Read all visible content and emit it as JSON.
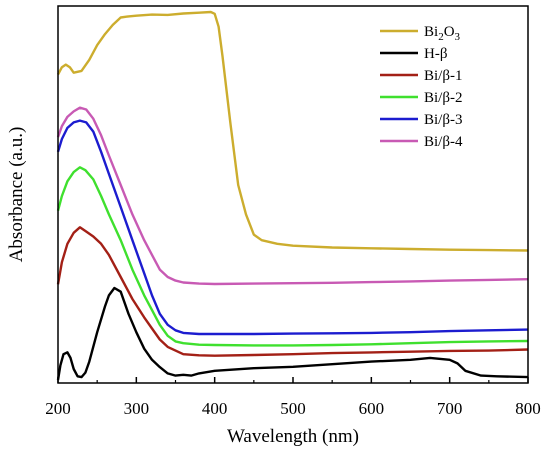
{
  "chart_data": {
    "type": "line",
    "title": "",
    "xlabel": "Wavelength (nm)",
    "ylabel": "Absorbance (a.u.)",
    "xlim": [
      200,
      800
    ],
    "ylim": [
      0,
      1.0
    ],
    "xticks": [
      200,
      300,
      400,
      500,
      600,
      700,
      800
    ],
    "x_tick_labels": [
      "200",
      "300",
      "400",
      "500",
      "600",
      "700",
      "800"
    ],
    "y_tick_labels_shown": false,
    "grid": false,
    "legend_position": "top-right",
    "series": [
      {
        "name": "Bi2O3",
        "name_base": "Bi",
        "name_sub1": "2",
        "name_mid": "O",
        "name_sub2": "3",
        "color": "#ccad2e",
        "points": [
          [
            200,
            0.83
          ],
          [
            205,
            0.85
          ],
          [
            210,
            0.857
          ],
          [
            215,
            0.85
          ],
          [
            220,
            0.835
          ],
          [
            230,
            0.84
          ],
          [
            240,
            0.87
          ],
          [
            250,
            0.91
          ],
          [
            260,
            0.94
          ],
          [
            270,
            0.965
          ],
          [
            280,
            0.985
          ],
          [
            290,
            0.988
          ],
          [
            300,
            0.99
          ],
          [
            320,
            0.993
          ],
          [
            340,
            0.992
          ],
          [
            360,
            0.996
          ],
          [
            380,
            0.998
          ],
          [
            395,
            1.0
          ],
          [
            400,
            0.995
          ],
          [
            405,
            0.96
          ],
          [
            410,
            0.88
          ],
          [
            420,
            0.7
          ],
          [
            430,
            0.53
          ],
          [
            440,
            0.45
          ],
          [
            450,
            0.395
          ],
          [
            460,
            0.38
          ],
          [
            480,
            0.37
          ],
          [
            500,
            0.365
          ],
          [
            550,
            0.36
          ],
          [
            600,
            0.358
          ],
          [
            650,
            0.356
          ],
          [
            700,
            0.354
          ],
          [
            750,
            0.353
          ],
          [
            800,
            0.352
          ]
        ]
      },
      {
        "name": "H-β",
        "color": "#000000",
        "points": [
          [
            200,
            0.0
          ],
          [
            203,
            0.04
          ],
          [
            207,
            0.07
          ],
          [
            212,
            0.075
          ],
          [
            216,
            0.06
          ],
          [
            220,
            0.03
          ],
          [
            225,
            0.01
          ],
          [
            230,
            0.008
          ],
          [
            235,
            0.02
          ],
          [
            240,
            0.05
          ],
          [
            250,
            0.13
          ],
          [
            260,
            0.2
          ],
          [
            265,
            0.23
          ],
          [
            272,
            0.25
          ],
          [
            280,
            0.24
          ],
          [
            290,
            0.18
          ],
          [
            300,
            0.13
          ],
          [
            310,
            0.085
          ],
          [
            320,
            0.055
          ],
          [
            330,
            0.035
          ],
          [
            340,
            0.018
          ],
          [
            350,
            0.012
          ],
          [
            360,
            0.014
          ],
          [
            370,
            0.012
          ],
          [
            380,
            0.018
          ],
          [
            400,
            0.025
          ],
          [
            450,
            0.032
          ],
          [
            500,
            0.036
          ],
          [
            550,
            0.043
          ],
          [
            600,
            0.05
          ],
          [
            650,
            0.055
          ],
          [
            675,
            0.06
          ],
          [
            700,
            0.055
          ],
          [
            710,
            0.045
          ],
          [
            720,
            0.025
          ],
          [
            740,
            0.012
          ],
          [
            760,
            0.01
          ],
          [
            800,
            0.008
          ]
        ]
      },
      {
        "name": "Bi/β-1",
        "color": "#a32016",
        "points": [
          [
            200,
            0.26
          ],
          [
            205,
            0.32
          ],
          [
            212,
            0.37
          ],
          [
            220,
            0.4
          ],
          [
            228,
            0.415
          ],
          [
            235,
            0.405
          ],
          [
            245,
            0.39
          ],
          [
            255,
            0.37
          ],
          [
            265,
            0.34
          ],
          [
            280,
            0.28
          ],
          [
            295,
            0.22
          ],
          [
            310,
            0.17
          ],
          [
            320,
            0.14
          ],
          [
            330,
            0.11
          ],
          [
            340,
            0.09
          ],
          [
            350,
            0.08
          ],
          [
            360,
            0.07
          ],
          [
            380,
            0.067
          ],
          [
            400,
            0.066
          ],
          [
            450,
            0.068
          ],
          [
            500,
            0.07
          ],
          [
            550,
            0.073
          ],
          [
            600,
            0.075
          ],
          [
            650,
            0.077
          ],
          [
            700,
            0.079
          ],
          [
            750,
            0.08
          ],
          [
            800,
            0.083
          ]
        ]
      },
      {
        "name": "Bi/β-2",
        "color": "#3fe02e",
        "points": [
          [
            200,
            0.46
          ],
          [
            205,
            0.5
          ],
          [
            212,
            0.54
          ],
          [
            220,
            0.565
          ],
          [
            228,
            0.578
          ],
          [
            235,
            0.57
          ],
          [
            245,
            0.545
          ],
          [
            255,
            0.5
          ],
          [
            265,
            0.45
          ],
          [
            280,
            0.38
          ],
          [
            295,
            0.3
          ],
          [
            310,
            0.23
          ],
          [
            320,
            0.19
          ],
          [
            330,
            0.15
          ],
          [
            340,
            0.12
          ],
          [
            350,
            0.105
          ],
          [
            360,
            0.1
          ],
          [
            380,
            0.096
          ],
          [
            400,
            0.095
          ],
          [
            450,
            0.094
          ],
          [
            500,
            0.094
          ],
          [
            550,
            0.095
          ],
          [
            600,
            0.097
          ],
          [
            650,
            0.1
          ],
          [
            700,
            0.103
          ],
          [
            750,
            0.105
          ],
          [
            800,
            0.106
          ]
        ]
      },
      {
        "name": "Bi/β-3",
        "color": "#1c1ccf",
        "points": [
          [
            200,
            0.62
          ],
          [
            205,
            0.655
          ],
          [
            212,
            0.685
          ],
          [
            220,
            0.7
          ],
          [
            228,
            0.705
          ],
          [
            236,
            0.7
          ],
          [
            245,
            0.675
          ],
          [
            255,
            0.62
          ],
          [
            265,
            0.56
          ],
          [
            280,
            0.47
          ],
          [
            295,
            0.38
          ],
          [
            310,
            0.29
          ],
          [
            320,
            0.23
          ],
          [
            330,
            0.18
          ],
          [
            340,
            0.15
          ],
          [
            350,
            0.135
          ],
          [
            360,
            0.128
          ],
          [
            380,
            0.125
          ],
          [
            400,
            0.125
          ],
          [
            450,
            0.125
          ],
          [
            500,
            0.126
          ],
          [
            550,
            0.127
          ],
          [
            600,
            0.128
          ],
          [
            650,
            0.13
          ],
          [
            700,
            0.133
          ],
          [
            750,
            0.135
          ],
          [
            800,
            0.137
          ]
        ]
      },
      {
        "name": "Bi/β-4",
        "color": "#c85ab4",
        "points": [
          [
            200,
            0.66
          ],
          [
            205,
            0.69
          ],
          [
            212,
            0.715
          ],
          [
            220,
            0.73
          ],
          [
            228,
            0.74
          ],
          [
            236,
            0.735
          ],
          [
            245,
            0.71
          ],
          [
            255,
            0.665
          ],
          [
            265,
            0.61
          ],
          [
            280,
            0.53
          ],
          [
            295,
            0.45
          ],
          [
            310,
            0.38
          ],
          [
            320,
            0.34
          ],
          [
            330,
            0.3
          ],
          [
            340,
            0.28
          ],
          [
            350,
            0.27
          ],
          [
            360,
            0.265
          ],
          [
            380,
            0.262
          ],
          [
            400,
            0.261
          ],
          [
            450,
            0.262
          ],
          [
            500,
            0.263
          ],
          [
            550,
            0.264
          ],
          [
            600,
            0.266
          ],
          [
            650,
            0.268
          ],
          [
            700,
            0.27
          ],
          [
            750,
            0.272
          ],
          [
            800,
            0.274
          ]
        ]
      }
    ]
  }
}
